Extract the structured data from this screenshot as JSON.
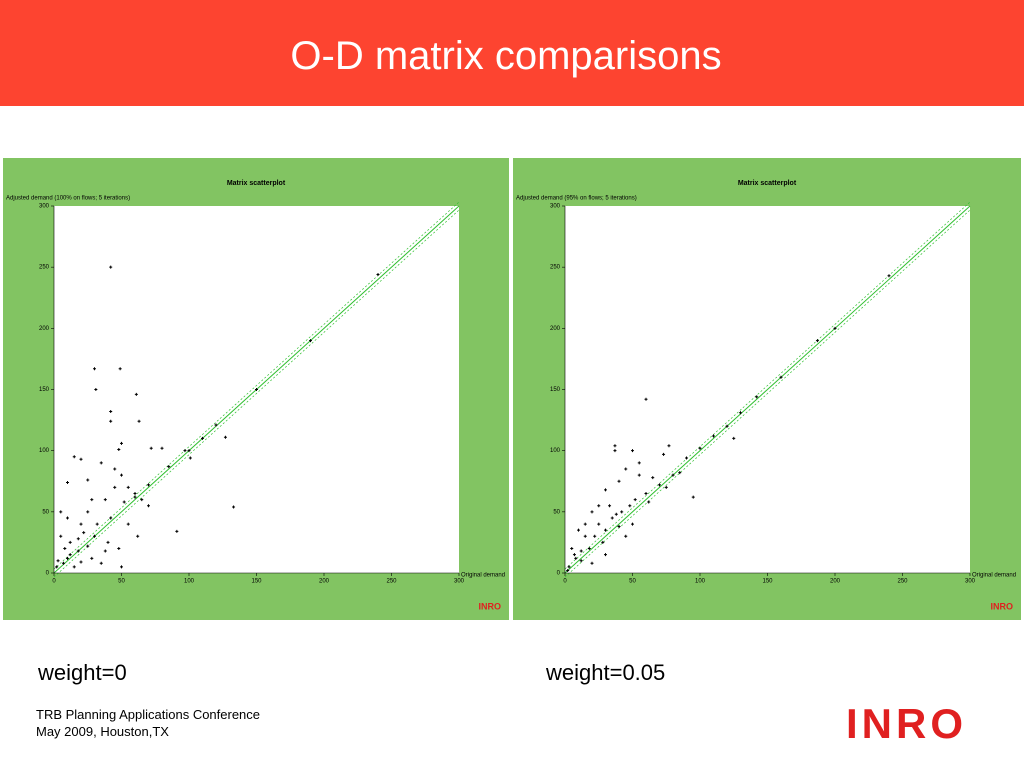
{
  "slide": {
    "title": "O-D matrix comparisons",
    "captions": [
      "weight=0",
      "weight=0.05"
    ],
    "footer": [
      "TRB Planning Applications Conference",
      "May 2009, Houston,TX"
    ],
    "logo": "INRO"
  },
  "chart_data": [
    {
      "type": "scatter",
      "title": "Matrix scatterplot",
      "y_label": "Adjusted demand (100% on flows; 5 iterations)",
      "x_label": "Original demand",
      "color": "#000000",
      "xlim": [
        0,
        300
      ],
      "ylim": [
        0,
        300
      ],
      "xticks": [
        0,
        50,
        100,
        150,
        200,
        250,
        300
      ],
      "yticks": [
        0,
        50,
        100,
        150,
        200,
        250,
        300
      ],
      "x": [
        42,
        30,
        49,
        31,
        61,
        42,
        63,
        42,
        50,
        48,
        80,
        72,
        101,
        97,
        127,
        133,
        91,
        15,
        20,
        10,
        25,
        35,
        45,
        50,
        55,
        60,
        65,
        70,
        5,
        10,
        20,
        30,
        40,
        8,
        12,
        3,
        18,
        25,
        38,
        45,
        52,
        48,
        28,
        15,
        50,
        35,
        5,
        2,
        7,
        10,
        18,
        25,
        100,
        150,
        190,
        240,
        110,
        85,
        70,
        120,
        60,
        32,
        22,
        12,
        28,
        42,
        55,
        38,
        20,
        62
      ],
      "values": [
        250,
        167,
        167,
        150,
        146,
        132,
        124,
        124,
        106,
        101,
        102,
        102,
        94,
        100,
        111,
        54,
        34,
        95,
        93,
        74,
        76,
        90,
        85,
        80,
        70,
        65,
        60,
        55,
        50,
        45,
        40,
        30,
        25,
        20,
        15,
        10,
        28,
        50,
        60,
        70,
        58,
        20,
        12,
        5,
        5,
        8,
        30,
        5,
        8,
        12,
        18,
        22,
        100,
        150,
        190,
        244,
        110,
        87,
        72,
        121,
        62,
        40,
        33,
        25,
        60,
        45,
        40,
        18,
        9,
        30
      ]
    },
    {
      "type": "scatter",
      "title": "Matrix scatterplot",
      "y_label": "Adjusted demand (95% on flows; 5 iterations)",
      "x_label": "Original demand",
      "color": "#000000",
      "xlim": [
        0,
        300
      ],
      "ylim": [
        0,
        300
      ],
      "xticks": [
        0,
        50,
        100,
        150,
        200,
        250,
        300
      ],
      "yticks": [
        0,
        50,
        100,
        150,
        200,
        250,
        300
      ],
      "x": [
        60,
        37,
        37,
        50,
        77,
        73,
        55,
        45,
        40,
        30,
        55,
        65,
        80,
        90,
        120,
        125,
        95,
        142,
        187,
        240,
        100,
        110,
        20,
        25,
        15,
        10,
        5,
        8,
        3,
        18,
        22,
        30,
        35,
        42,
        48,
        52,
        60,
        70,
        75,
        12,
        28,
        40,
        62,
        45,
        30,
        20,
        15,
        25,
        33,
        38,
        50,
        7,
        2,
        12,
        85,
        130,
        160,
        200
      ],
      "values": [
        142,
        104,
        100,
        100,
        104,
        97,
        90,
        85,
        75,
        68,
        80,
        78,
        80,
        94,
        120,
        110,
        62,
        144,
        190,
        243,
        102,
        112,
        50,
        55,
        40,
        35,
        20,
        12,
        5,
        20,
        30,
        35,
        45,
        50,
        55,
        60,
        65,
        72,
        70,
        10,
        25,
        38,
        58,
        30,
        15,
        8,
        30,
        40,
        55,
        48,
        40,
        15,
        2,
        18,
        82,
        131,
        160,
        200
      ]
    }
  ]
}
